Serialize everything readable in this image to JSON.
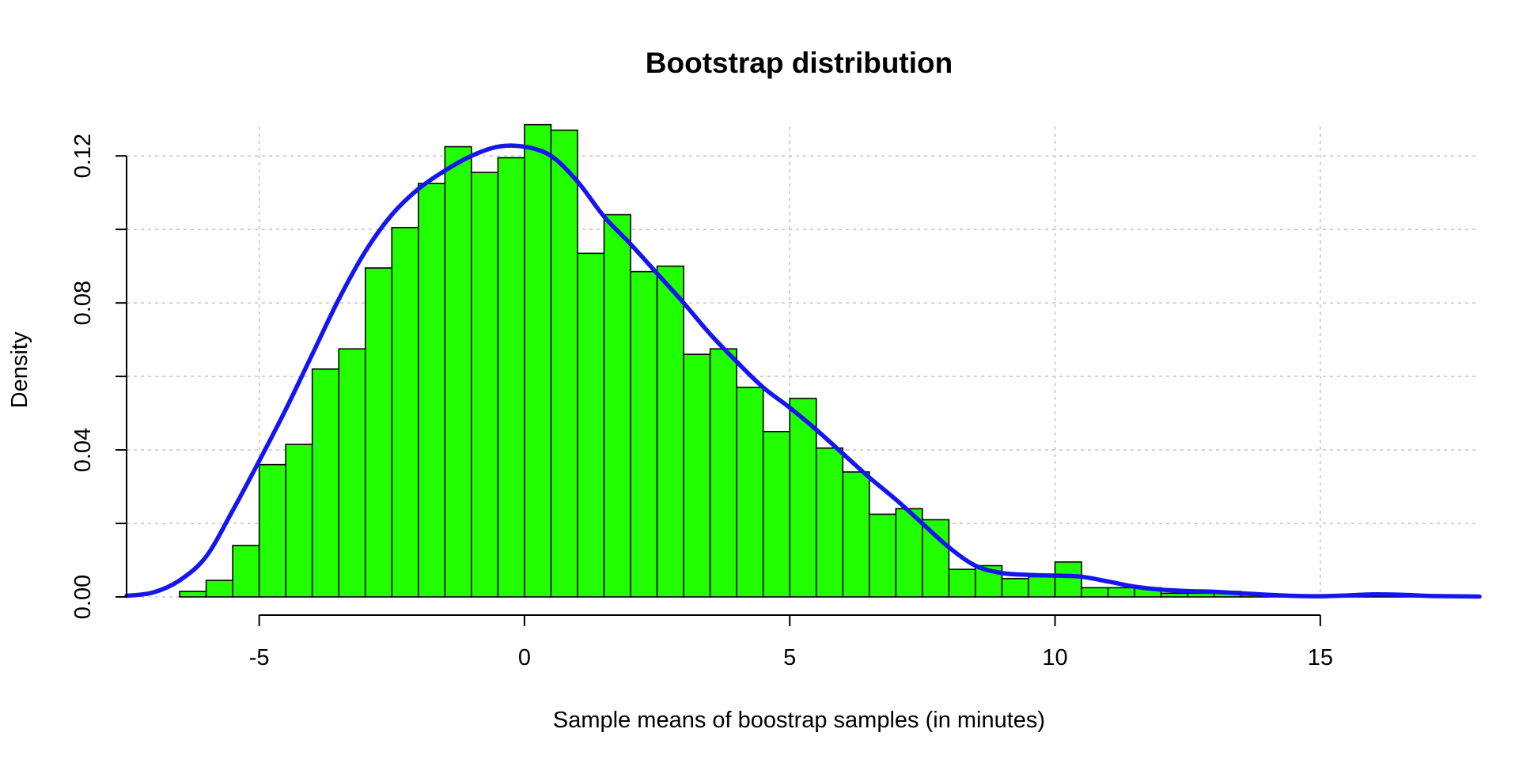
{
  "chart_data": {
    "type": "bar",
    "title": "Bootstrap distribution",
    "xlabel": "Sample means of boostrap samples (in minutes)",
    "ylabel": "Density",
    "xlim": [
      -7.5,
      18
    ],
    "ylim": [
      0,
      0.128
    ],
    "x_ticks": [
      -5,
      0,
      5,
      10,
      15
    ],
    "x_tick_labels": [
      "-5",
      "0",
      "5",
      "10",
      "15"
    ],
    "y_ticks": [
      0,
      0.02,
      0.04,
      0.06,
      0.08,
      0.1,
      0.12
    ],
    "y_tick_labels": [
      "0.00",
      "",
      "0.04",
      "",
      "0.08",
      "",
      "0.12"
    ],
    "x_axis_range": [
      -5,
      15
    ],
    "y_axis_range": [
      0,
      0.12
    ],
    "grid": true,
    "bin_width": 0.5,
    "bins": [
      {
        "x0": -6.5,
        "x1": -6.0,
        "density": 0.0015
      },
      {
        "x0": -6.0,
        "x1": -5.5,
        "density": 0.0045
      },
      {
        "x0": -5.5,
        "x1": -5.0,
        "density": 0.014
      },
      {
        "x0": -5.0,
        "x1": -4.5,
        "density": 0.036
      },
      {
        "x0": -4.5,
        "x1": -4.0,
        "density": 0.0415
      },
      {
        "x0": -4.0,
        "x1": -3.5,
        "density": 0.062
      },
      {
        "x0": -3.5,
        "x1": -3.0,
        "density": 0.0675
      },
      {
        "x0": -3.0,
        "x1": -2.5,
        "density": 0.0895
      },
      {
        "x0": -2.5,
        "x1": -2.0,
        "density": 0.1005
      },
      {
        "x0": -2.0,
        "x1": -1.5,
        "density": 0.1125
      },
      {
        "x0": -1.5,
        "x1": -1.0,
        "density": 0.1225
      },
      {
        "x0": -1.0,
        "x1": -0.5,
        "density": 0.1155
      },
      {
        "x0": -0.5,
        "x1": 0.0,
        "density": 0.1195
      },
      {
        "x0": 0.0,
        "x1": 0.5,
        "density": 0.1285
      },
      {
        "x0": 0.5,
        "x1": 1.0,
        "density": 0.127
      },
      {
        "x0": 1.0,
        "x1": 1.5,
        "density": 0.0935
      },
      {
        "x0": 1.5,
        "x1": 2.0,
        "density": 0.104
      },
      {
        "x0": 2.0,
        "x1": 2.5,
        "density": 0.0885
      },
      {
        "x0": 2.5,
        "x1": 3.0,
        "density": 0.09
      },
      {
        "x0": 3.0,
        "x1": 3.5,
        "density": 0.066
      },
      {
        "x0": 3.5,
        "x1": 4.0,
        "density": 0.0675
      },
      {
        "x0": 4.0,
        "x1": 4.5,
        "density": 0.057
      },
      {
        "x0": 4.5,
        "x1": 5.0,
        "density": 0.045
      },
      {
        "x0": 5.0,
        "x1": 5.5,
        "density": 0.054
      },
      {
        "x0": 5.5,
        "x1": 6.0,
        "density": 0.0405
      },
      {
        "x0": 6.0,
        "x1": 6.5,
        "density": 0.034
      },
      {
        "x0": 6.5,
        "x1": 7.0,
        "density": 0.0225
      },
      {
        "x0": 7.0,
        "x1": 7.5,
        "density": 0.024
      },
      {
        "x0": 7.5,
        "x1": 8.0,
        "density": 0.021
      },
      {
        "x0": 8.0,
        "x1": 8.5,
        "density": 0.0075
      },
      {
        "x0": 8.5,
        "x1": 9.0,
        "density": 0.0085
      },
      {
        "x0": 9.0,
        "x1": 9.5,
        "density": 0.005
      },
      {
        "x0": 9.5,
        "x1": 10.0,
        "density": 0.0055
      },
      {
        "x0": 10.0,
        "x1": 10.5,
        "density": 0.0095
      },
      {
        "x0": 10.5,
        "x1": 11.0,
        "density": 0.0025
      },
      {
        "x0": 11.0,
        "x1": 11.5,
        "density": 0.0025
      },
      {
        "x0": 11.5,
        "x1": 12.0,
        "density": 0.0025
      },
      {
        "x0": 12.0,
        "x1": 12.5,
        "density": 0.001
      },
      {
        "x0": 12.5,
        "x1": 13.0,
        "density": 0.001
      },
      {
        "x0": 13.0,
        "x1": 13.5,
        "density": 0.0015
      },
      {
        "x0": 13.5,
        "x1": 14.0,
        "density": 0.0005
      },
      {
        "x0": 14.0,
        "x1": 14.5,
        "density": 0.0005
      },
      {
        "x0": 14.5,
        "x1": 15.0,
        "density": 0.0005
      },
      {
        "x0": 15.0,
        "x1": 15.5,
        "density": 0.0003
      },
      {
        "x0": 15.5,
        "x1": 16.0,
        "density": 0.0003
      },
      {
        "x0": 16.0,
        "x1": 16.5,
        "density": 0.001
      },
      {
        "x0": 16.5,
        "x1": 17.0,
        "density": 0.0005
      }
    ],
    "density_curve": {
      "x": [
        -7.5,
        -7.0,
        -6.5,
        -6.0,
        -5.5,
        -5.0,
        -4.5,
        -4.0,
        -3.5,
        -3.0,
        -2.5,
        -2.0,
        -1.5,
        -1.0,
        -0.5,
        0.0,
        0.5,
        1.0,
        1.5,
        2.0,
        2.5,
        3.0,
        3.5,
        4.0,
        4.5,
        5.0,
        5.5,
        6.0,
        6.5,
        7.0,
        7.5,
        8.0,
        8.5,
        9.0,
        9.5,
        10.0,
        10.5,
        11.0,
        11.5,
        12.0,
        12.5,
        13.0,
        13.5,
        14.0,
        14.5,
        15.0,
        15.5,
        16.0,
        16.5,
        17.0,
        17.5,
        18.0
      ],
      "y": [
        0.0003,
        0.0012,
        0.0045,
        0.011,
        0.0235,
        0.037,
        0.051,
        0.066,
        0.081,
        0.094,
        0.104,
        0.111,
        0.116,
        0.12,
        0.1225,
        0.1225,
        0.12,
        0.113,
        0.1035,
        0.096,
        0.088,
        0.08,
        0.0715,
        0.064,
        0.057,
        0.0515,
        0.0455,
        0.039,
        0.0325,
        0.0265,
        0.02,
        0.0135,
        0.0085,
        0.0065,
        0.006,
        0.0058,
        0.0055,
        0.0042,
        0.0028,
        0.002,
        0.0016,
        0.0014,
        0.001,
        0.0006,
        0.0003,
        0.0002,
        0.0004,
        0.0007,
        0.0006,
        0.0003,
        0.0002,
        0.0001
      ]
    },
    "colors": {
      "bar_fill": "#22ff00",
      "bar_stroke": "#000000",
      "density_line": "#1515ee",
      "grid": "#c8c8c8"
    }
  }
}
